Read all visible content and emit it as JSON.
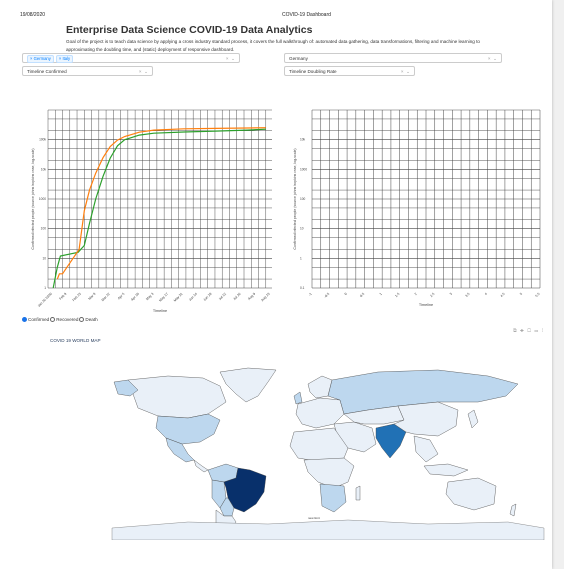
{
  "header": {
    "date": "19/08/2020",
    "doc_title": "COVID-19 Dashboard"
  },
  "title": "Enterprise Data Science COVID-19 Data Analytics",
  "description": "Goal of the project is to teach data science by applying a cross industry standard process, it covers the full walkthrough of: automated data gathering, data transformations, filtering and machine learning to approximating the doubling time, and (static) deployment of responsive dashboard.",
  "controls": {
    "country_multi": {
      "chips": [
        "Germany",
        "Italy"
      ],
      "clear": "×",
      "arrow": "⌄"
    },
    "timeline_left": {
      "value": "Timeline Confirmed",
      "clear": "×",
      "arrow": "⌄"
    },
    "country_single": {
      "value": "Germany",
      "clear": "×",
      "arrow": "⌄"
    },
    "timeline_right": {
      "value": "Timeline Doubling Rate",
      "clear": "×",
      "arrow": "⌄"
    }
  },
  "left_chart": {
    "chart_data": {
      "type": "line",
      "ylabel": "Confirmed infected people (source johns hopkins csse, log-scale)",
      "xlabel": "Timeline",
      "y_scale": "log",
      "ylim": [
        1,
        1000000
      ],
      "x_tick_labels": [
        "Jan 26\n2020",
        "Feb 9",
        "Feb 23",
        "Mar 8",
        "Mar 22",
        "Apr 5",
        "Apr 19",
        "May 3",
        "May 17",
        "May 31",
        "Jun 14",
        "Jun 28",
        "Jul 12",
        "Jul 26",
        "Aug 9",
        "Aug 23"
      ],
      "series": [
        {
          "color": "#2ca02c",
          "x": [
            "2020-01-27",
            "2020-01-31",
            "2020-02-03",
            "2020-02-20",
            "2020-02-26",
            "2020-03-02",
            "2020-03-08",
            "2020-03-15",
            "2020-03-22",
            "2020-03-29",
            "2020-04-05",
            "2020-04-19",
            "2020-05-03",
            "2020-06-01",
            "2020-07-01",
            "2020-08-01",
            "2020-08-19"
          ],
          "y": [
            1,
            5,
            12,
            16,
            27,
            150,
            1000,
            5800,
            24000,
            62000,
            100000,
            142000,
            165000,
            182000,
            195000,
            210000,
            226000
          ]
        },
        {
          "color": "#ff7f0e",
          "x": [
            "2020-01-31",
            "2020-02-02",
            "2020-02-05",
            "2020-02-21",
            "2020-02-26",
            "2020-03-02",
            "2020-03-08",
            "2020-03-15",
            "2020-03-22",
            "2020-03-29",
            "2020-04-05",
            "2020-04-19",
            "2020-05-03",
            "2020-06-01",
            "2020-07-01",
            "2020-08-01",
            "2020-08-19"
          ],
          "y": [
            2,
            3,
            3,
            20,
            400,
            2000,
            7400,
            24700,
            59000,
            97000,
            128000,
            178000,
            210000,
            233000,
            240000,
            248000,
            254000
          ]
        }
      ]
    }
  },
  "right_chart": {
    "chart_data": {
      "type": "line",
      "ylabel": "Confirmed infected people (source johns hopkins csse, log-scale)",
      "xlabel": "Timeline",
      "y_scale": "log",
      "ylim": [
        0.1,
        100000
      ],
      "y_tick_labels": [
        "0.1",
        "1",
        "10",
        "100",
        "1000",
        "10k"
      ],
      "x_tick_labels": [
        "-1",
        "-0.5",
        "0",
        "0.5",
        "1",
        "1.5",
        "2",
        "2.5",
        "3",
        "3.5",
        "4",
        "4.5",
        "5",
        "5.5"
      ],
      "series": []
    }
  },
  "radio": [
    {
      "label": "Confirmed",
      "checked": true
    },
    {
      "label": "Recovered",
      "checked": false
    },
    {
      "label": "Death",
      "checked": false
    }
  ],
  "map": {
    "title": "COVID 19 WORLD MAP",
    "modebar": "⧉ ✚ ▢ ▭ ⁞",
    "bottom_label": "new limit",
    "colors": {
      "high": "#08306b",
      "mid": "#2171b5",
      "low": "#bdd7ee",
      "vlow": "#e9f0f8"
    }
  }
}
